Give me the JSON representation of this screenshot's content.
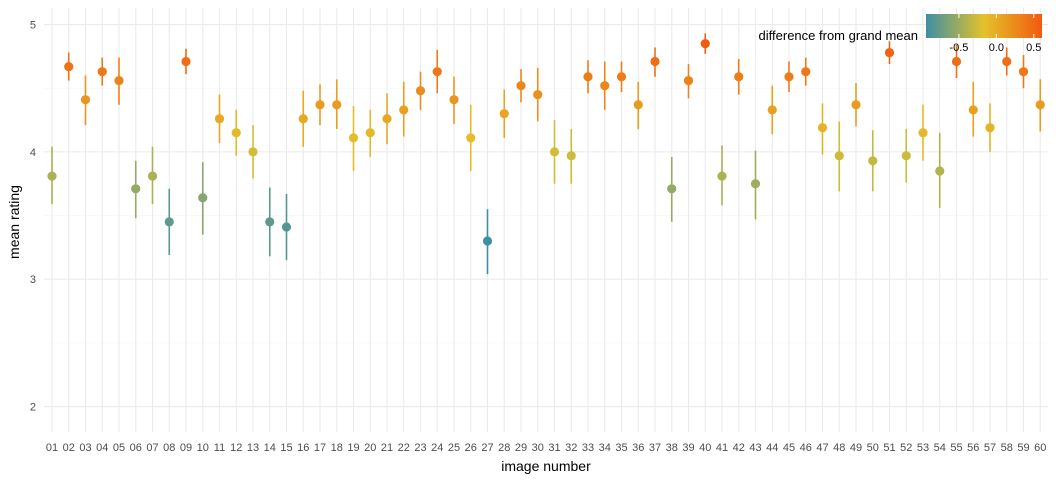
{
  "chart_data": {
    "type": "scatter",
    "xlabel": "image number",
    "ylabel": "mean rating",
    "ylim": [
      1.8,
      5.13
    ],
    "yticks": [
      2,
      3,
      4,
      5
    ],
    "grid": true,
    "categories": [
      "01",
      "02",
      "03",
      "04",
      "05",
      "06",
      "07",
      "08",
      "09",
      "10",
      "11",
      "12",
      "13",
      "14",
      "15",
      "16",
      "17",
      "18",
      "19",
      "20",
      "21",
      "22",
      "23",
      "24",
      "25",
      "26",
      "27",
      "28",
      "29",
      "30",
      "31",
      "32",
      "33",
      "34",
      "35",
      "36",
      "37",
      "38",
      "39",
      "40",
      "41",
      "42",
      "43",
      "44",
      "45",
      "46",
      "47",
      "48",
      "49",
      "50",
      "51",
      "52",
      "53",
      "54",
      "55",
      "56",
      "57",
      "58",
      "59",
      "60"
    ],
    "mean": [
      3.81,
      4.67,
      4.41,
      4.63,
      4.56,
      3.71,
      3.81,
      3.45,
      4.71,
      3.64,
      4.26,
      4.15,
      4.0,
      3.45,
      3.41,
      4.26,
      4.37,
      4.37,
      4.11,
      4.15,
      4.26,
      4.33,
      4.48,
      4.63,
      4.41,
      4.11,
      3.3,
      4.3,
      4.52,
      4.45,
      4.0,
      3.97,
      4.59,
      4.52,
      4.59,
      4.37,
      4.71,
      3.71,
      4.56,
      4.85,
      3.81,
      4.59,
      3.75,
      4.33,
      4.59,
      4.63,
      4.19,
      3.97,
      4.37,
      3.93,
      4.78,
      3.97,
      4.15,
      3.85,
      4.71,
      4.33,
      4.19,
      4.71,
      4.63,
      4.37
    ],
    "lower": [
      3.59,
      4.56,
      4.21,
      4.52,
      4.37,
      3.48,
      3.59,
      3.19,
      4.61,
      3.35,
      4.07,
      3.97,
      3.79,
      3.18,
      3.15,
      4.04,
      4.21,
      4.18,
      3.85,
      3.96,
      4.06,
      4.12,
      4.33,
      4.46,
      4.22,
      3.85,
      3.04,
      4.11,
      4.39,
      4.24,
      3.75,
      3.75,
      4.46,
      4.33,
      4.47,
      4.18,
      4.59,
      3.45,
      4.42,
      4.77,
      3.58,
      4.45,
      3.47,
      4.14,
      4.47,
      4.52,
      3.98,
      3.69,
      4.2,
      3.69,
      4.69,
      3.76,
      3.93,
      3.56,
      4.58,
      4.12,
      4.0,
      4.6,
      4.5,
      4.16
    ],
    "upper": [
      4.04,
      4.78,
      4.6,
      4.74,
      4.74,
      3.93,
      4.04,
      3.71,
      4.81,
      3.92,
      4.45,
      4.33,
      4.21,
      3.72,
      3.67,
      4.48,
      4.53,
      4.57,
      4.36,
      4.33,
      4.46,
      4.55,
      4.63,
      4.8,
      4.59,
      4.37,
      3.55,
      4.49,
      4.65,
      4.66,
      4.25,
      4.18,
      4.72,
      4.71,
      4.71,
      4.55,
      4.82,
      3.96,
      4.69,
      4.93,
      4.05,
      4.73,
      4.01,
      4.52,
      4.71,
      4.74,
      4.38,
      4.24,
      4.54,
      4.17,
      4.87,
      4.18,
      4.37,
      4.15,
      4.84,
      4.55,
      4.38,
      4.82,
      4.76,
      4.57
    ],
    "legend": {
      "title": "difference from grand mean",
      "ticks": [
        -0.5,
        0.0,
        0.5
      ],
      "tick_labels": [
        "-0.5",
        "0.0",
        "0.5"
      ],
      "range": [
        -0.94,
        0.61
      ],
      "colors": [
        "#3d8fa5",
        "#e4c22a",
        "#f25a10"
      ],
      "placement": "top-right"
    }
  }
}
